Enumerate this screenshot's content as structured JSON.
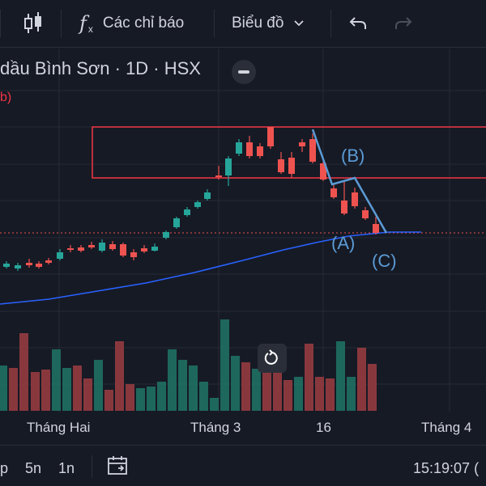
{
  "toolbar": {
    "indicators_label": "Các chỉ báo",
    "chart_type_label": "Biểu đồ"
  },
  "chart": {
    "title": "dầu Bình Sơn · 1D · HSX",
    "red_hint": "b)",
    "wave_labels": {
      "a": "(A)",
      "b": "(B)",
      "c": "(C)"
    }
  },
  "time_axis": {
    "labels": [
      "Tháng Hai",
      "Tháng 3",
      "16",
      "Tháng 4"
    ]
  },
  "bottom_bar": {
    "range_1": "p",
    "range_5n": "5n",
    "range_1n": "1n",
    "clock": "15:19:07 ("
  },
  "colors": {
    "background": "#161a25",
    "up": "#26a69a",
    "down": "#ef5350",
    "ma_line": "#2962ff",
    "annotation": "#5b9bd5",
    "box": "#f23645"
  }
}
